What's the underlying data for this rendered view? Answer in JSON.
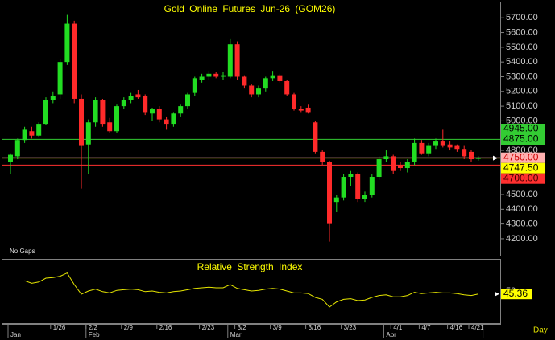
{
  "chart_data": {
    "type": "candlestick",
    "title": "Gold Online Futures Jun-26 (GOM26)",
    "note": "No Gaps",
    "x_axis_label": "Day",
    "dates": [
      null,
      null,
      null,
      null,
      null,
      null,
      "1/26",
      null,
      null,
      null,
      null,
      "2/2",
      null,
      null,
      null,
      null,
      "2/9",
      null,
      null,
      null,
      null,
      "2/16",
      null,
      null,
      null,
      null,
      null,
      "2/23",
      null,
      null,
      null,
      null,
      "3/2",
      null,
      null,
      null,
      null,
      "3/9",
      null,
      null,
      null,
      null,
      "3/16",
      null,
      null,
      null,
      null,
      "3/23",
      null,
      null,
      null,
      null,
      null,
      null,
      "4/1",
      null,
      null,
      null,
      "4/7",
      null,
      null,
      null,
      "4/16",
      null,
      null,
      "4/21",
      null,
      null
    ],
    "months": [
      "Jan",
      null,
      null,
      null,
      null,
      null,
      null,
      null,
      null,
      null,
      null,
      "Feb",
      null,
      null,
      null,
      null,
      null,
      null,
      null,
      null,
      null,
      null,
      null,
      null,
      null,
      null,
      null,
      null,
      null,
      null,
      null,
      "Mar",
      null,
      null,
      null,
      null,
      null,
      null,
      null,
      null,
      null,
      null,
      null,
      null,
      null,
      null,
      null,
      null,
      null,
      null,
      null,
      null,
      null,
      "Apr",
      null,
      null,
      null,
      null,
      null,
      null,
      null,
      null,
      null,
      null,
      null,
      null,
      null
    ],
    "open": [
      4720,
      4760,
      4870,
      4930,
      4900,
      4980,
      5140,
      5180,
      5400,
      5660,
      5150,
      4840,
      4990,
      5140,
      4990,
      4930,
      5100,
      5140,
      5180,
      5170,
      5050,
      5080,
      5010,
      4980,
      5050,
      5100,
      5190,
      5280,
      5300,
      5320,
      5300,
      5300,
      5520,
      5300,
      5240,
      5180,
      5220,
      5290,
      5310,
      5270,
      5180,
      5080,
      5090,
      4990,
      4790,
      4720,
      4450,
      4480,
      4620,
      4640,
      4470,
      4500,
      4620,
      4740,
      4760,
      4700,
      4680,
      4720,
      4850,
      4780,
      4830,
      4860,
      4840,
      4830,
      4810,
      4790,
      4745
    ],
    "high": [
      4780,
      4880,
      4960,
      4960,
      4990,
      5160,
      5200,
      5420,
      5720,
      5680,
      5180,
      5010,
      5160,
      5150,
      5020,
      5110,
      5160,
      5190,
      5210,
      5180,
      5090,
      5100,
      5030,
      5060,
      5110,
      5190,
      5300,
      5320,
      5340,
      5330,
      5330,
      5560,
      5540,
      5310,
      5250,
      5240,
      5300,
      5340,
      5320,
      5280,
      5190,
      5100,
      5110,
      5000,
      4800,
      4730,
      4500,
      4640,
      4660,
      4650,
      4520,
      4640,
      4760,
      4800,
      4770,
      4720,
      4740,
      4880,
      4870,
      4850,
      4880,
      4940,
      4860,
      4840,
      4830,
      4800,
      4760
    ],
    "low": [
      4640,
      4740,
      4850,
      4880,
      4890,
      4970,
      5120,
      5150,
      5380,
      5120,
      4540,
      4640,
      4960,
      4960,
      4920,
      4920,
      5080,
      5120,
      5150,
      5040,
      5000,
      4990,
      4940,
      4960,
      5030,
      5080,
      5170,
      5260,
      5280,
      5290,
      5280,
      5290,
      5280,
      5220,
      5160,
      5160,
      5200,
      5270,
      5260,
      5170,
      5070,
      5060,
      5050,
      4780,
      4700,
      4180,
      4380,
      4460,
      4560,
      4450,
      4450,
      4480,
      4600,
      4720,
      4640,
      4660,
      4650,
      4700,
      4770,
      4760,
      4810,
      4820,
      4800,
      4790,
      4740,
      4720,
      4730
    ],
    "close": [
      4770,
      4870,
      4940,
      4900,
      4980,
      5140,
      5170,
      5400,
      5660,
      5150,
      4830,
      4990,
      5140,
      4980,
      4930,
      5100,
      5140,
      5170,
      5160,
      5060,
      5080,
      5010,
      4980,
      5050,
      5100,
      5180,
      5290,
      5300,
      5320,
      5300,
      5310,
      5520,
      5300,
      5240,
      5180,
      5220,
      5290,
      5310,
      5270,
      5180,
      5080,
      5070,
      5060,
      4790,
      4720,
      4300,
      4480,
      4620,
      4640,
      4470,
      4500,
      4620,
      4740,
      4760,
      4660,
      4680,
      4720,
      4850,
      4780,
      4830,
      4860,
      4830,
      4820,
      4810,
      4760,
      4740,
      4747.5
    ],
    "up_color": "#22dd22",
    "down_color": "#ff2a2a",
    "ylim": [
      4085,
      5805
    ],
    "yticks": [
      {
        "value": 4200,
        "label": "4200.00"
      },
      {
        "value": 4300,
        "label": "4300.00"
      },
      {
        "value": 4400,
        "label": "4400.00"
      },
      {
        "value": 4500,
        "label": "4500.00"
      },
      {
        "value": 4600,
        "label": "4600.00"
      },
      {
        "value": 4700,
        "label": "4700.00"
      },
      {
        "value": 4800,
        "label": "4800.00"
      },
      {
        "value": 4900,
        "label": "4900.00"
      },
      {
        "value": 5000,
        "label": "5000.00"
      },
      {
        "value": 5100,
        "label": "5100.00"
      },
      {
        "value": 5200,
        "label": "5200.00"
      },
      {
        "value": 5300,
        "label": "5300.00"
      },
      {
        "value": 5400,
        "label": "5400.00"
      },
      {
        "value": 5500,
        "label": "5500.00"
      },
      {
        "value": 5600,
        "label": "5600.00"
      },
      {
        "value": 5700,
        "label": "5700.00"
      }
    ],
    "levels": [
      {
        "value": 4945,
        "label": "4945.00",
        "color": "#33cc33",
        "text_color": "#000000"
      },
      {
        "value": 4875,
        "label": "4875.00",
        "color": "#33cc33",
        "text_color": "#000000"
      },
      {
        "value": 4750,
        "label": "4750.00",
        "color": "#ffb0b0",
        "text_color": "#cc0000"
      },
      {
        "value": 4747.5,
        "label": "4747.50",
        "color": "#ffff00",
        "text_color": "#000000"
      },
      {
        "value": 4700,
        "label": "4700.00",
        "color": "#ff3030",
        "text_color": "#400000"
      }
    ],
    "grid": false,
    "rsi": {
      "name": "Relative Strength Index",
      "color": "#e6e600",
      "ylim": [
        0,
        100
      ],
      "yticks": [
        50
      ],
      "values": [
        null,
        null,
        66,
        62,
        64,
        70,
        71,
        73,
        78,
        60,
        45,
        50,
        53,
        49,
        47,
        51,
        52,
        53,
        52,
        49,
        50,
        48,
        47,
        49,
        50,
        52,
        54,
        55,
        56,
        55,
        55,
        60,
        54,
        52,
        50,
        51,
        53,
        54,
        53,
        50,
        47,
        47,
        46,
        40,
        37,
        25,
        33,
        37,
        38,
        35,
        36,
        40,
        43,
        44,
        41,
        41,
        43,
        48,
        46,
        47,
        48,
        47,
        47,
        46,
        44,
        43,
        45.36
      ]
    }
  }
}
